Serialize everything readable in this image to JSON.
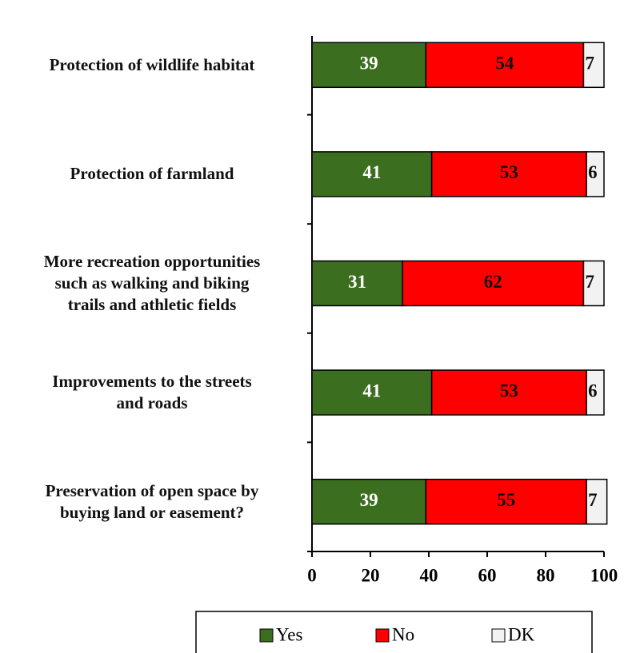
{
  "chart_data": {
    "type": "stacked_bar_horizontal",
    "categories": [
      "Protection of wildlife habitat",
      "Protection of farmland",
      "More recreation opportunities\nsuch as walking and biking\ntrails and athletic  fields",
      "Improvements to the streets\nand roads",
      "Preservation of open space by\nbuying land or easement?"
    ],
    "series": [
      {
        "name": "Yes",
        "color": "#3b6e1f",
        "values": [
          39,
          41,
          31,
          41,
          39
        ]
      },
      {
        "name": "No",
        "color": "#ff0000",
        "values": [
          54,
          53,
          62,
          53,
          55
        ]
      },
      {
        "name": "DK",
        "color": "#f2f2f2",
        "values": [
          7,
          6,
          7,
          6,
          7
        ]
      }
    ],
    "xlim": [
      0,
      100
    ],
    "xticks": [
      0,
      20,
      40,
      60,
      80,
      100
    ],
    "legend": "bottom"
  }
}
